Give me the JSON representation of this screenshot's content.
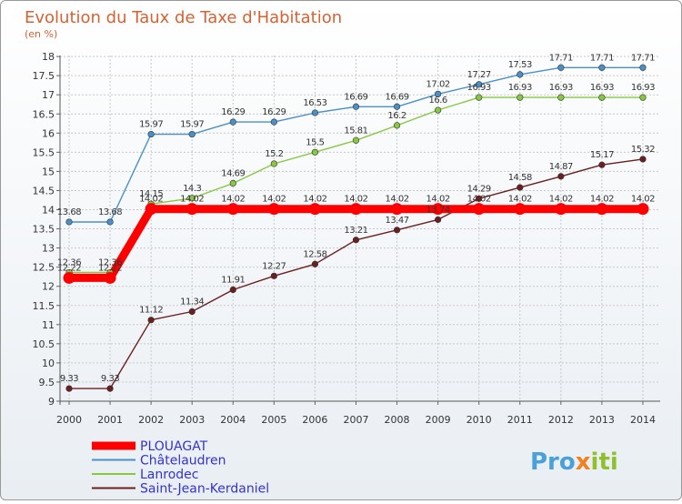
{
  "chart_data": {
    "type": "line",
    "title": "Evolution du Taux de Taxe d'Habitation",
    "subtitle": "(en %)",
    "x": [
      "2000",
      "2001",
      "2002",
      "2003",
      "2004",
      "2005",
      "2006",
      "2007",
      "2008",
      "2009",
      "2010",
      "2011",
      "2012",
      "2013",
      "2014"
    ],
    "ylim": [
      9,
      18
    ],
    "yticks": [
      "9",
      "9.5",
      "10",
      "10.5",
      "11",
      "11.5",
      "12",
      "12.5",
      "13",
      "13.5",
      "14",
      "14.5",
      "15",
      "15.5",
      "16",
      "16.5",
      "17",
      "17.5",
      "18"
    ],
    "series": [
      {
        "name": "PLOUAGAT",
        "color": "#ff0000",
        "values": [
          12.22,
          12.22,
          14.02,
          14.02,
          14.02,
          14.02,
          14.02,
          14.02,
          14.02,
          14.02,
          14.02,
          14.02,
          14.02,
          14.02,
          14.02
        ],
        "labels": [
          "12.22",
          "12.22",
          "14.02",
          "14.02",
          "14.02",
          "14.02",
          "14.02",
          "14.02",
          "14.02",
          "14.02",
          "14.02",
          "14.02",
          "14.02",
          "14.02",
          "14.02"
        ]
      },
      {
        "name": "Châtelaudren",
        "color": "#4a90c8",
        "values": [
          13.68,
          13.68,
          15.97,
          15.97,
          16.29,
          16.29,
          16.53,
          16.69,
          16.69,
          17.02,
          17.27,
          17.53,
          17.71,
          17.71,
          17.71
        ],
        "labels": [
          "13.68",
          "13.68",
          "15.97",
          "15.97",
          "16.29",
          "16.29",
          "16.53",
          "16.69",
          "16.69",
          "17.02",
          "17.27",
          "17.53",
          "17.71",
          "17.71",
          "17.71"
        ]
      },
      {
        "name": "Lanrodec",
        "color": "#88c840",
        "values": [
          12.36,
          12.36,
          14.15,
          14.3,
          14.69,
          15.2,
          15.5,
          15.81,
          16.2,
          16.6,
          16.93,
          16.93,
          16.93,
          16.93,
          16.93
        ],
        "labels": [
          "12.36",
          "12.36",
          "14.15",
          "14.3",
          "14.69",
          "15.2",
          "15.5",
          "15.81",
          "16.2",
          "16.6",
          "16.93",
          "16.93",
          "16.93",
          "16.93",
          "16.93"
        ]
      },
      {
        "name": "Saint-Jean-Kerdaniel",
        "color": "#6b1f1f",
        "values": [
          9.33,
          9.33,
          11.12,
          11.34,
          11.91,
          12.27,
          12.58,
          13.21,
          13.47,
          13.74,
          14.29,
          14.58,
          14.87,
          15.17,
          15.32
        ],
        "labels": [
          "9.33",
          "9.33",
          "11.12",
          "11.34",
          "11.91",
          "12.27",
          "12.58",
          "13.21",
          "13.47",
          "13.74",
          "14.29",
          "14.58",
          "14.87",
          "15.17",
          "15.32"
        ]
      }
    ]
  },
  "logo": {
    "part1": "Pro",
    "part2": "x",
    "part3": "iti"
  }
}
